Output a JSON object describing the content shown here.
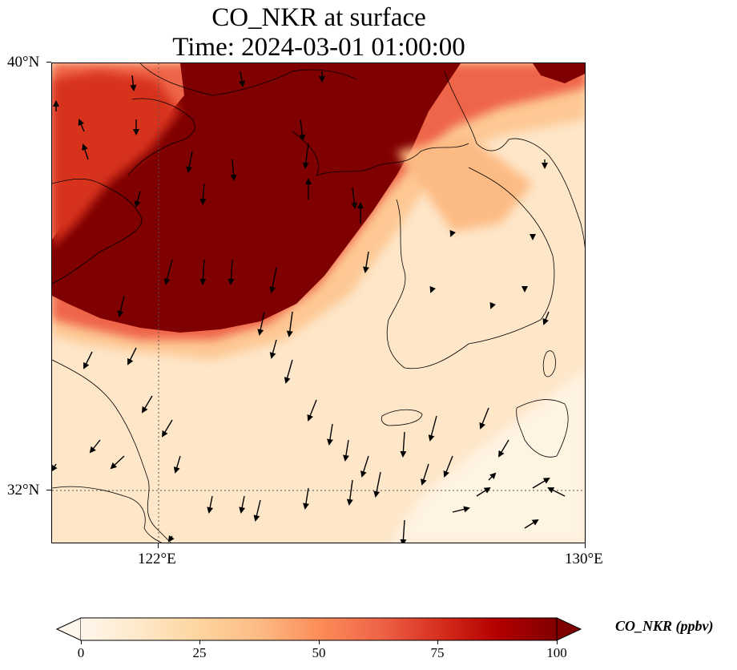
{
  "title": {
    "line1": "CO_NKR at surface",
    "line2": "Time: 2024-03-01 01:00:00"
  },
  "map": {
    "extent_lon": [
      120,
      130
    ],
    "extent_lat": [
      31,
      40
    ],
    "lat_ticks": [
      {
        "value": 40,
        "label": "40°N"
      },
      {
        "value": 32,
        "label": "32°N"
      }
    ],
    "lon_ticks": [
      {
        "value": 122,
        "label": "122°E"
      },
      {
        "value": 130,
        "label": "130°E"
      }
    ],
    "gridlines": "dotted",
    "features": [
      "coastlines",
      "wind-vectors",
      "filled-concentration-field"
    ]
  },
  "colorbar": {
    "label": "CO_NKR (ppbv)",
    "min": 0,
    "max": 100,
    "ticks": [
      "0",
      "25",
      "50",
      "75",
      "100"
    ],
    "colormap": "OrRd",
    "extend": "both",
    "colors": [
      "#fff7ec",
      "#fee8c8",
      "#fdd49e",
      "#fdbb84",
      "#fc8d59",
      "#ef6548",
      "#d7301f",
      "#b30000",
      "#7f0000"
    ]
  }
}
